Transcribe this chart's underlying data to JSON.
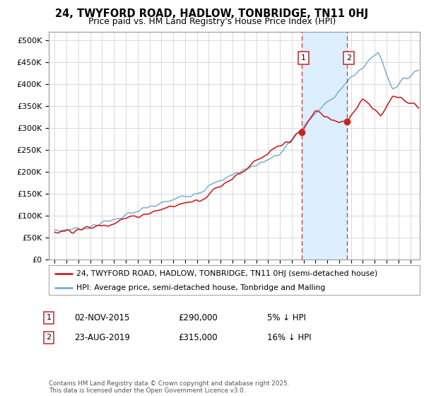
{
  "title": "24, TWYFORD ROAD, HADLOW, TONBRIDGE, TN11 0HJ",
  "subtitle": "Price paid vs. HM Land Registry's House Price Index (HPI)",
  "legend_line1": "24, TWYFORD ROAD, HADLOW, TONBRIDGE, TN11 0HJ (semi-detached house)",
  "legend_line2": "HPI: Average price, semi-detached house, Tonbridge and Malling",
  "annotation1_label": "1",
  "annotation1_date": "02-NOV-2015",
  "annotation1_price": "£290,000",
  "annotation1_hpi": "5% ↓ HPI",
  "annotation2_label": "2",
  "annotation2_date": "23-AUG-2019",
  "annotation2_price": "£315,000",
  "annotation2_hpi": "16% ↓ HPI",
  "footnote": "Contains HM Land Registry data © Crown copyright and database right 2025.\nThis data is licensed under the Open Government Licence v3.0.",
  "ylim": [
    0,
    520000
  ],
  "yticks": [
    0,
    50000,
    100000,
    150000,
    200000,
    250000,
    300000,
    350000,
    400000,
    450000,
    500000
  ],
  "sale1_x": 2015.84,
  "sale1_y": 290000,
  "sale2_x": 2019.65,
  "sale2_y": 315000,
  "vline1_x": 2015.84,
  "vline2_x": 2019.65,
  "hpi_color": "#7aadd4",
  "price_color": "#cc2222",
  "vline_color": "#cc3333",
  "shade_color": "#ddeeff",
  "background_color": "#ffffff",
  "grid_color": "#cccccc",
  "xlim_left": 1994.5,
  "xlim_right": 2025.8
}
